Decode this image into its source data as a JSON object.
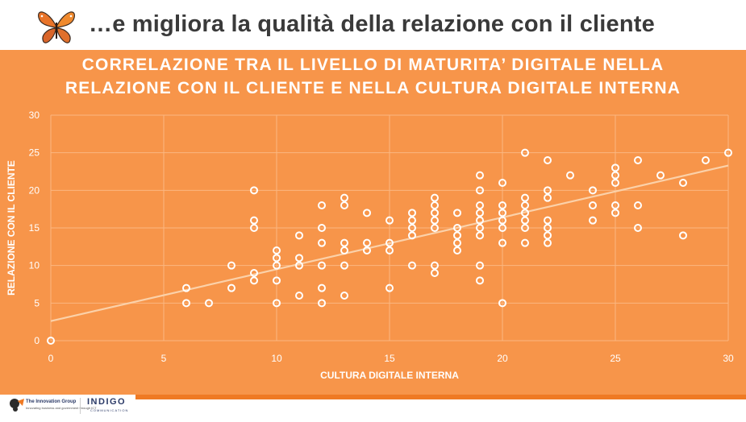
{
  "header": {
    "title": "…e migliora la qualità della relazione con il cliente"
  },
  "footer": {
    "logo_left_name": "The Innovation Group",
    "logo_left_sub": "Innovating business and government through ICT",
    "logo_right_name": "INDIGO",
    "logo_right_sub": "COMMUNICATION"
  },
  "colors": {
    "panel": "#f7954a",
    "accent": "#ef7a24",
    "grid": "#fbb781",
    "marker": "#ffffff",
    "trendline": "#fbd1a9"
  },
  "chart_data": {
    "type": "scatter",
    "title": "CORRELAZIONE TRA IL LIVELLO DI MATURITA’ DIGITALE NELLA RELAZIONE CON IL CLIENTE E NELLA CULTURA DIGITALE INTERNA",
    "title_lines": [
      "CORRELAZIONE TRA IL LIVELLO DI MATURITA’ DIGITALE NELLA",
      "RELAZIONE CON IL CLIENTE E NELLA CULTURA DIGITALE INTERNA"
    ],
    "xlabel": "CULTURA DIGITALE INTERNA",
    "ylabel": "RELAZIONE CON IL CLIENTE",
    "xlim": [
      0,
      30
    ],
    "ylim": [
      0,
      30
    ],
    "xticks": [
      0,
      5,
      10,
      15,
      20,
      25,
      30
    ],
    "yticks": [
      0,
      5,
      10,
      15,
      20,
      25,
      30
    ],
    "grid": true,
    "trendline": {
      "x": [
        0,
        30
      ],
      "y": [
        2.6,
        23.3
      ]
    },
    "points": [
      [
        0,
        0
      ],
      [
        6,
        7
      ],
      [
        6,
        5
      ],
      [
        7,
        5
      ],
      [
        8,
        10
      ],
      [
        8,
        7
      ],
      [
        9,
        20
      ],
      [
        9,
        16
      ],
      [
        9,
        15
      ],
      [
        9,
        9
      ],
      [
        9,
        8
      ],
      [
        10,
        12
      ],
      [
        10,
        11
      ],
      [
        10,
        10
      ],
      [
        10,
        8
      ],
      [
        10,
        5
      ],
      [
        11,
        14
      ],
      [
        11,
        11
      ],
      [
        11,
        10
      ],
      [
        11,
        6
      ],
      [
        12,
        18
      ],
      [
        12,
        15
      ],
      [
        12,
        13
      ],
      [
        12,
        10
      ],
      [
        12,
        7
      ],
      [
        12,
        5
      ],
      [
        13,
        19
      ],
      [
        13,
        18
      ],
      [
        13,
        13
      ],
      [
        13,
        12
      ],
      [
        13,
        10
      ],
      [
        13,
        6
      ],
      [
        14,
        17
      ],
      [
        14,
        13
      ],
      [
        14,
        12
      ],
      [
        15,
        16
      ],
      [
        15,
        13
      ],
      [
        15,
        12
      ],
      [
        15,
        7
      ],
      [
        16,
        17
      ],
      [
        16,
        16
      ],
      [
        16,
        15
      ],
      [
        16,
        14
      ],
      [
        16,
        10
      ],
      [
        17,
        19
      ],
      [
        17,
        18
      ],
      [
        17,
        17
      ],
      [
        17,
        16
      ],
      [
        17,
        15
      ],
      [
        17,
        10
      ],
      [
        17,
        9
      ],
      [
        18,
        17
      ],
      [
        18,
        15
      ],
      [
        18,
        14
      ],
      [
        18,
        13
      ],
      [
        18,
        12
      ],
      [
        19,
        22
      ],
      [
        19,
        20
      ],
      [
        19,
        18
      ],
      [
        19,
        17
      ],
      [
        19,
        16
      ],
      [
        19,
        15
      ],
      [
        19,
        14
      ],
      [
        19,
        10
      ],
      [
        19,
        8
      ],
      [
        20,
        21
      ],
      [
        20,
        18
      ],
      [
        20,
        17
      ],
      [
        20,
        16
      ],
      [
        20,
        15
      ],
      [
        20,
        13
      ],
      [
        20,
        5
      ],
      [
        21,
        25
      ],
      [
        21,
        19
      ],
      [
        21,
        18
      ],
      [
        21,
        17
      ],
      [
        21,
        16
      ],
      [
        21,
        15
      ],
      [
        21,
        13
      ],
      [
        22,
        24
      ],
      [
        22,
        20
      ],
      [
        22,
        19
      ],
      [
        22,
        16
      ],
      [
        22,
        15
      ],
      [
        22,
        14
      ],
      [
        22,
        13
      ],
      [
        23,
        22
      ],
      [
        24,
        20
      ],
      [
        24,
        18
      ],
      [
        24,
        16
      ],
      [
        25,
        23
      ],
      [
        25,
        22
      ],
      [
        25,
        21
      ],
      [
        25,
        18
      ],
      [
        25,
        17
      ],
      [
        26,
        24
      ],
      [
        26,
        18
      ],
      [
        26,
        15
      ],
      [
        27,
        22
      ],
      [
        28,
        21
      ],
      [
        28,
        14
      ],
      [
        29,
        24
      ],
      [
        30,
        25
      ]
    ]
  }
}
